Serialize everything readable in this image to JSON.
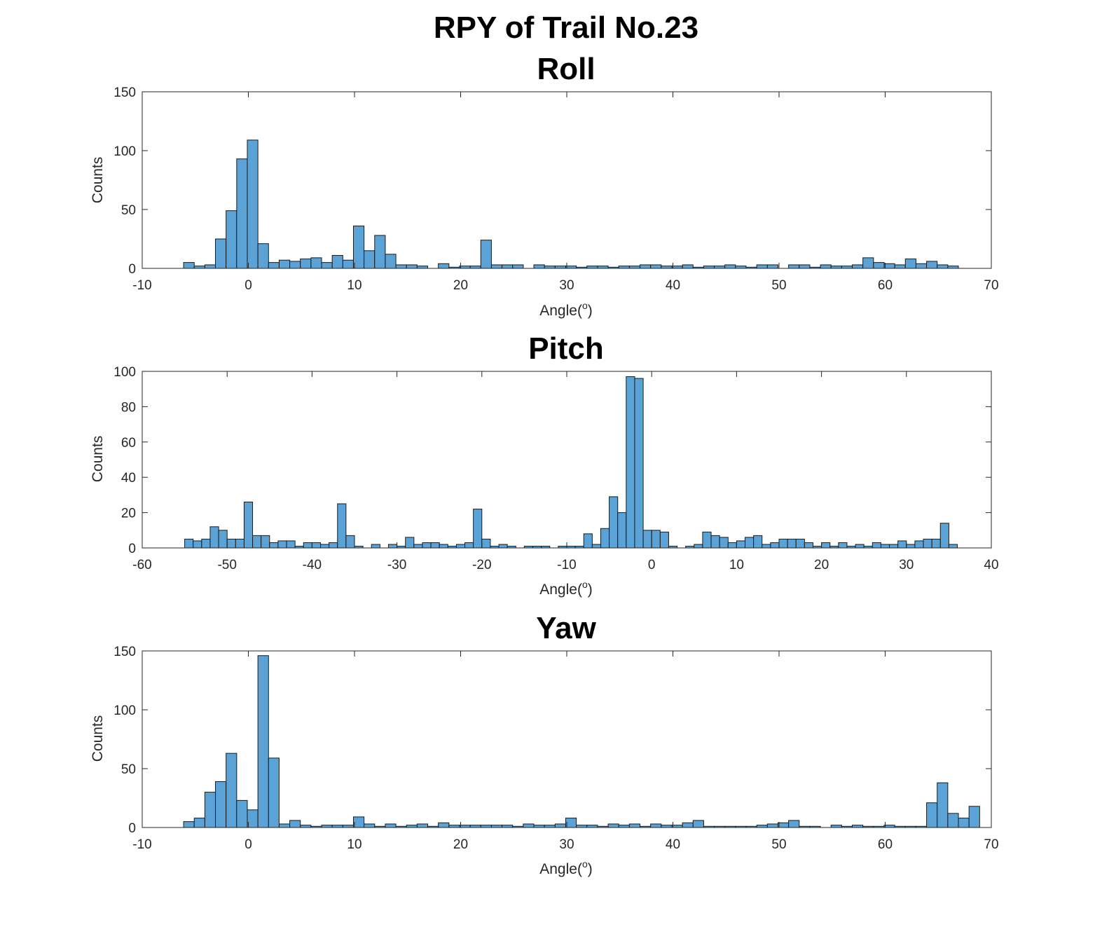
{
  "figure": {
    "title": "RPY of Trail No.23",
    "bar_color": "#5ba3d6",
    "bar_edge_color": "#1a1a1a"
  },
  "chart_data": [
    {
      "type": "bar",
      "title": "Roll",
      "xlabel": "Angle(°)",
      "xlabel_base": "Angle(",
      "xlabel_sup": "o",
      "xlabel_end": ")",
      "ylabel": "Counts",
      "xlim": [
        -10,
        70
      ],
      "ylim": [
        0,
        150
      ],
      "xticks": [
        -10,
        0,
        10,
        20,
        30,
        40,
        50,
        60,
        70
      ],
      "yticks": [
        0,
        50,
        100,
        150
      ],
      "bin_start": -6.1,
      "bin_width": 1.0,
      "values": [
        5,
        2,
        3,
        25,
        49,
        93,
        109,
        21,
        5,
        7,
        6,
        8,
        9,
        5,
        11,
        7,
        36,
        15,
        28,
        12,
        3,
        3,
        2,
        0,
        4,
        1,
        2,
        2,
        24,
        3,
        3,
        3,
        0,
        3,
        2,
        2,
        2,
        1,
        2,
        2,
        1,
        2,
        2,
        3,
        3,
        2,
        2,
        3,
        1,
        2,
        2,
        3,
        2,
        1,
        3,
        3,
        0,
        3,
        3,
        1,
        3,
        2,
        2,
        3,
        9,
        5,
        4,
        3,
        8,
        4,
        6,
        3,
        2
      ]
    },
    {
      "type": "bar",
      "title": "Pitch",
      "xlabel": "Angle(°)",
      "xlabel_base": "Angle(",
      "xlabel_sup": "o",
      "xlabel_end": ")",
      "ylabel": "Counts",
      "xlim": [
        -60,
        40
      ],
      "ylim": [
        0,
        100
      ],
      "xticks": [
        -60,
        -50,
        -40,
        -30,
        -20,
        -10,
        0,
        10,
        20,
        30,
        40
      ],
      "yticks": [
        0,
        20,
        40,
        60,
        80,
        100
      ],
      "bin_start": -55.0,
      "bin_width": 1.0,
      "values": [
        5,
        4,
        5,
        12,
        10,
        5,
        5,
        26,
        7,
        7,
        3,
        4,
        4,
        1,
        3,
        3,
        2,
        3,
        25,
        7,
        1,
        0,
        2,
        0,
        2,
        1,
        6,
        2,
        3,
        3,
        2,
        1,
        2,
        3,
        22,
        5,
        1,
        2,
        1,
        0,
        1,
        1,
        1,
        0,
        1,
        1,
        1,
        8,
        2,
        11,
        29,
        20,
        97,
        96,
        10,
        10,
        9,
        1,
        0,
        1,
        2,
        9,
        7,
        6,
        3,
        4,
        6,
        7,
        2,
        3,
        5,
        5,
        5,
        3,
        1,
        3,
        1,
        3,
        1,
        2,
        1,
        3,
        2,
        2,
        4,
        2,
        4,
        5,
        5,
        14,
        2
      ]
    },
    {
      "type": "bar",
      "title": "Yaw",
      "xlabel": "Angle(°)",
      "xlabel_base": "Angle(",
      "xlabel_sup": "o",
      "xlabel_end": ")",
      "ylabel": "Counts",
      "xlim": [
        -10,
        70
      ],
      "ylim": [
        0,
        150
      ],
      "xticks": [
        -10,
        0,
        10,
        20,
        30,
        40,
        50,
        60,
        70
      ],
      "yticks": [
        0,
        50,
        100,
        150
      ],
      "bin_start": -6.1,
      "bin_width": 1.0,
      "values": [
        5,
        8,
        30,
        39,
        63,
        23,
        15,
        146,
        59,
        3,
        6,
        2,
        1,
        2,
        2,
        2,
        9,
        3,
        1,
        3,
        1,
        2,
        3,
        1,
        4,
        2,
        2,
        2,
        2,
        2,
        2,
        1,
        3,
        2,
        2,
        3,
        8,
        2,
        2,
        1,
        3,
        2,
        3,
        1,
        3,
        2,
        2,
        4,
        6,
        1,
        1,
        1,
        1,
        1,
        2,
        3,
        4,
        6,
        1,
        1,
        0,
        2,
        1,
        2,
        1,
        1,
        2,
        1,
        1,
        1,
        21,
        38,
        12,
        8,
        18
      ]
    }
  ]
}
